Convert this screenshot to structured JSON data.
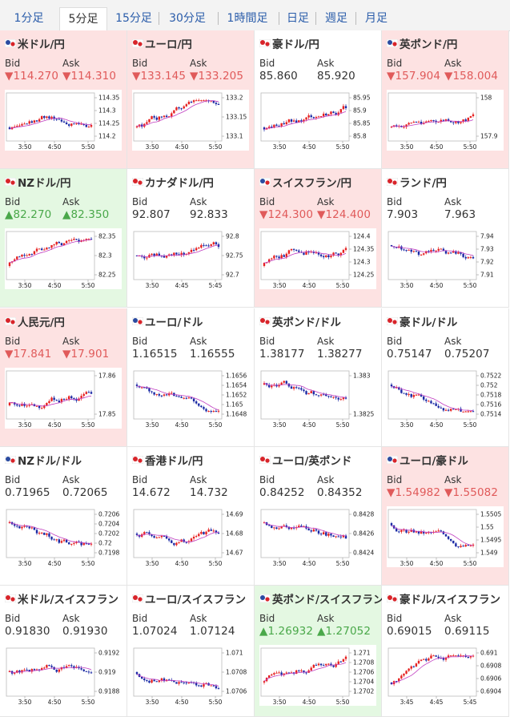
{
  "tabs": [
    "1分足",
    "5分足",
    "15分足",
    "30分足",
    "1時間足",
    "日足",
    "週足",
    "月足"
  ],
  "active_tab": 1,
  "colors": {
    "down_bg": "#fde2e2",
    "up_bg": "#e4f8e2",
    "down_text": "#e05a5a",
    "up_text": "#4aa84a",
    "candle_up": "#e62121",
    "candle_down": "#1b2aa5",
    "ma": "#c03cc0"
  },
  "labels": {
    "bid": "Bid",
    "ask": "Ask"
  },
  "pairs": [
    {
      "name": "米ドル/円",
      "flag": "us-jp-flag-icon",
      "state": "down",
      "bid": "▼114.270",
      "ask": "▼114.310",
      "y_ticks": [
        "114.35",
        "114.3",
        "114.25",
        "114.2"
      ],
      "x_ticks": [
        "3:50",
        "4:50",
        "5:50"
      ]
    },
    {
      "name": "ユーロ/円",
      "flag": "eu-jp-flag-icon",
      "state": "down",
      "bid": "▼133.145",
      "ask": "▼133.205",
      "y_ticks": [
        "133.2",
        "133.15",
        "133.1"
      ],
      "x_ticks": [
        "3:50",
        "4:50",
        "5:50"
      ]
    },
    {
      "name": "豪ドル/円",
      "flag": "au-jp-flag-icon",
      "state": "flat",
      "bid": "85.860",
      "ask": "85.920",
      "y_ticks": [
        "85.95",
        "85.9",
        "85.85",
        "85.8"
      ],
      "x_ticks": [
        "3:50",
        "4:50",
        "5:50"
      ]
    },
    {
      "name": "英ポンド/円",
      "flag": "gb-jp-flag-icon",
      "state": "down",
      "bid": "▼157.904",
      "ask": "▼158.004",
      "y_ticks": [
        "158",
        "157.9"
      ],
      "x_ticks": [
        "3:50",
        "4:50",
        "5:50"
      ]
    },
    {
      "name": "NZドル/円",
      "flag": "nz-jp-flag-icon",
      "state": "up",
      "bid": "▲82.270",
      "ask": "▲82.350",
      "y_ticks": [
        "82.35",
        "82.3",
        "82.25"
      ],
      "x_ticks": [
        "3:50",
        "4:50",
        "5:50"
      ]
    },
    {
      "name": "カナダドル/円",
      "flag": "ca-jp-flag-icon",
      "state": "flat",
      "bid": "92.807",
      "ask": "92.833",
      "y_ticks": [
        "92.8",
        "92.75",
        "92.7"
      ],
      "x_ticks": [
        "3:50",
        "4:45",
        "5:45"
      ]
    },
    {
      "name": "スイスフラン/円",
      "flag": "ch-jp-flag-icon",
      "state": "down",
      "bid": "▼124.300",
      "ask": "▼124.400",
      "y_ticks": [
        "124.4",
        "124.35",
        "124.3",
        "124.25"
      ],
      "x_ticks": [
        "3:50",
        "4:50",
        "5:50"
      ]
    },
    {
      "name": "ランド/円",
      "flag": "za-jp-flag-icon",
      "state": "flat",
      "bid": "7.903",
      "ask": "7.963",
      "y_ticks": [
        "7.94",
        "7.93",
        "7.92",
        "7.91"
      ],
      "x_ticks": [
        "3:50",
        "4:50",
        "5:50"
      ]
    },
    {
      "name": "人民元/円",
      "flag": "cn-jp-flag-icon",
      "state": "down",
      "bid": "▼17.841",
      "ask": "▼17.901",
      "y_ticks": [
        "17.86",
        "17.85"
      ],
      "x_ticks": [
        "3:50",
        "4:50",
        "5:50"
      ]
    },
    {
      "name": "ユーロ/ドル",
      "flag": "eu-us-flag-icon",
      "state": "flat",
      "bid": "1.16515",
      "ask": "1.16555",
      "y_ticks": [
        "1.1656",
        "1.1654",
        "1.1652",
        "1.165",
        "1.1648"
      ],
      "x_ticks": [
        "3:50",
        "4:50",
        "5:50"
      ]
    },
    {
      "name": "英ポンド/ドル",
      "flag": "gb-us-flag-icon",
      "state": "flat",
      "bid": "1.38177",
      "ask": "1.38277",
      "y_ticks": [
        "1.383",
        "1.3825"
      ],
      "x_ticks": [
        "3:50",
        "4:50",
        "5:50"
      ]
    },
    {
      "name": "豪ドル/ドル",
      "flag": "au-us-flag-icon",
      "state": "flat",
      "bid": "0.75147",
      "ask": "0.75207",
      "y_ticks": [
        "0.7522",
        "0.752",
        "0.7518",
        "0.7516",
        "0.7514"
      ],
      "x_ticks": [
        "3:50",
        "4:50",
        "5:50"
      ]
    },
    {
      "name": "NZドル/ドル",
      "flag": "nz-us-flag-icon",
      "state": "flat",
      "bid": "0.71965",
      "ask": "0.72065",
      "y_ticks": [
        "0.7206",
        "0.7204",
        "0.7202",
        "0.72",
        "0.7198"
      ],
      "x_ticks": [
        "3:50",
        "4:50",
        "5:50"
      ]
    },
    {
      "name": "香港ドル/円",
      "flag": "hk-jp-flag-icon",
      "state": "flat",
      "bid": "14.672",
      "ask": "14.732",
      "y_ticks": [
        "14.69",
        "14.68",
        "14.67"
      ],
      "x_ticks": [
        "3:50",
        "4:50",
        "5:50"
      ]
    },
    {
      "name": "ユーロ/英ポンド",
      "flag": "eu-gb-flag-icon",
      "state": "flat",
      "bid": "0.84252",
      "ask": "0.84352",
      "y_ticks": [
        "0.8428",
        "0.8426",
        "0.8424"
      ],
      "x_ticks": [
        "3:50",
        "4:50",
        "5:50"
      ]
    },
    {
      "name": "ユーロ/豪ドル",
      "flag": "eu-au-flag-icon",
      "state": "down",
      "bid": "▼1.54982",
      "ask": "▼1.55082",
      "y_ticks": [
        "1.5505",
        "1.55",
        "1.5495",
        "1.549"
      ],
      "x_ticks": [
        "3:50",
        "4:50",
        "5:50"
      ]
    },
    {
      "name": "米ドル/スイスフラン",
      "flag": "us-ch-flag-icon",
      "state": "flat",
      "bid": "0.91830",
      "ask": "0.91930",
      "y_ticks": [
        "0.9192",
        "0.919",
        "0.9188"
      ],
      "x_ticks": [
        "3:50",
        "4:50",
        "5:50"
      ]
    },
    {
      "name": "ユーロ/スイスフラン",
      "flag": "eu-ch-flag-icon",
      "state": "flat",
      "bid": "1.07024",
      "ask": "1.07124",
      "y_ticks": [
        "1.071",
        "1.0708",
        "1.0706"
      ],
      "x_ticks": [
        "3:50",
        "4:50",
        "5:50"
      ]
    },
    {
      "name": "英ポンド/スイスフラン",
      "flag": "gb-ch-flag-icon",
      "state": "up",
      "bid": "▲1.26932",
      "ask": "▲1.27052",
      "y_ticks": [
        "1.271",
        "1.2708",
        "1.2706",
        "1.2704",
        "1.2702"
      ],
      "x_ticks": [
        "3:50",
        "4:50",
        "5:50"
      ]
    },
    {
      "name": "豪ドル/スイスフラン",
      "flag": "au-ch-flag-icon",
      "state": "flat",
      "bid": "0.69015",
      "ask": "0.69115",
      "y_ticks": [
        "0.691",
        "0.6908",
        "0.6906",
        "0.6904"
      ],
      "x_ticks": [
        "3:45",
        "4:45",
        "5:45"
      ]
    }
  ]
}
